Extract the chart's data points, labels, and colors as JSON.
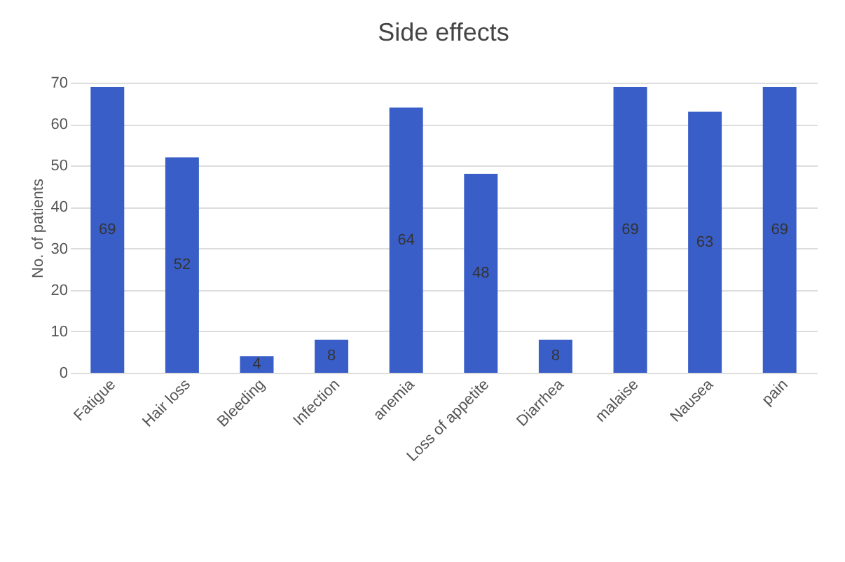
{
  "chart_data": {
    "type": "bar",
    "title": "Side effects",
    "ylabel": "No. of patients",
    "categories": [
      "Fatigue",
      "Hair loss",
      "Bleeding",
      "Infection",
      "anemia",
      "Loss of appetite",
      "Diarrhea",
      "malaise",
      "Nausea",
      "pain"
    ],
    "values": [
      69,
      52,
      4,
      8,
      64,
      48,
      8,
      69,
      63,
      69
    ],
    "color": "#3a5ec8",
    "ylim": [
      0,
      70
    ],
    "yticks": [
      0,
      10,
      20,
      30,
      40,
      50,
      60,
      70
    ],
    "grid": "y",
    "data_labels": true
  }
}
